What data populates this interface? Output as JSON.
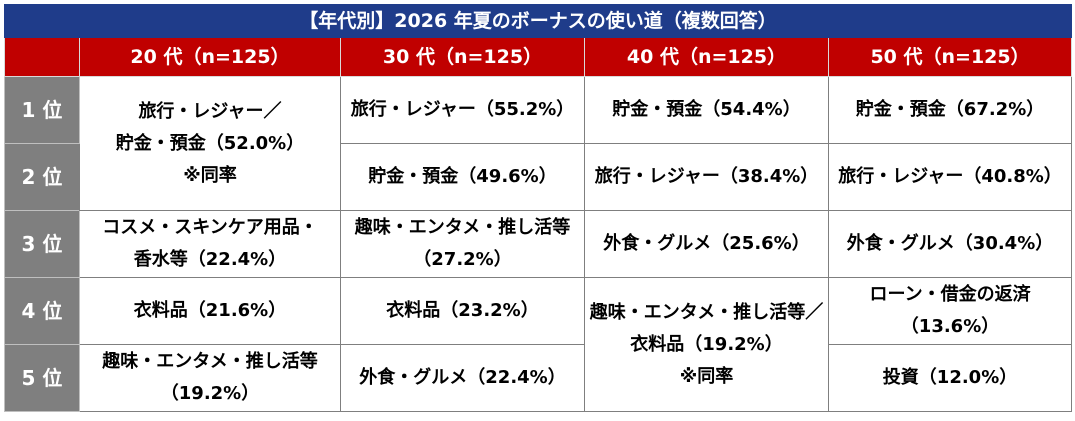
{
  "title": "【年代別】2026 年夏のボーナスの使い道（複数回答）",
  "headers": [
    "20 代（n=125）",
    "30 代（n=125）",
    "40 代（n=125）",
    "50 代（n=125）"
  ],
  "ranks": [
    "1 位",
    "2 位",
    "3 位",
    "4 位",
    "5 位"
  ],
  "cells": {
    "c20": {
      "r1_2": "旅行・レジャー／\n貯金・預金（52.0%）\n※同率",
      "r3": "コスメ・スキンケア用品・\n香水等（22.4%）",
      "r4": "衣料品（21.6%）",
      "r5": "趣味・エンタメ・推し活等\n（19.2%）"
    },
    "c30": {
      "r1": "旅行・レジャー（55.2%）",
      "r2": "貯金・預金（49.6%）",
      "r3": "趣味・エンタメ・推し活等\n（27.2%）",
      "r4": "衣料品（23.2%）",
      "r5": "外食・グルメ（22.4%）"
    },
    "c40": {
      "r1": "貯金・預金（54.4%）",
      "r2": "旅行・レジャー（38.4%）",
      "r3": "外食・グルメ（25.6%）",
      "r4_5": "趣味・エンタメ・推し活等／\n衣料品（19.2%）\n※同率"
    },
    "c50": {
      "r1": "貯金・預金（67.2%）",
      "r2": "旅行・レジャー（40.8%）",
      "r3": "外食・グルメ（30.4%）",
      "r4": "ローン・借金の返済\n（13.6%）",
      "r5": "投資（12.0%）"
    }
  },
  "colors": {
    "title_bg": "#1f3c8a",
    "header_bg": "#c00000",
    "rank_bg": "#7f7f7f",
    "border": "#7f7f7f"
  }
}
